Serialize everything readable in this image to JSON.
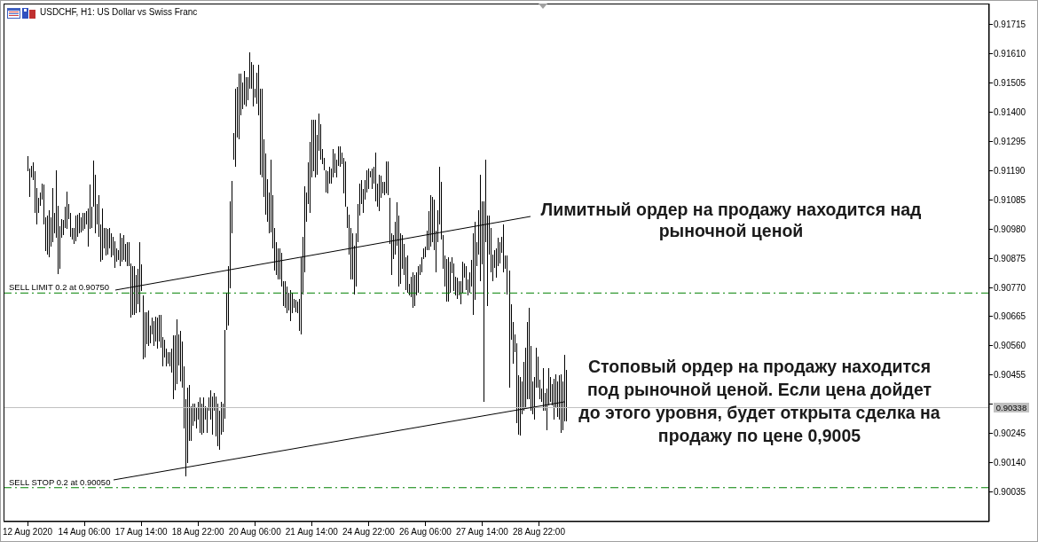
{
  "chart_data": {
    "type": "bar",
    "title": "USDCHF, H1: US Dollar vs Swiss Franc",
    "color": "#000000",
    "categories": [
      "12 Aug 2020",
      null,
      null,
      null,
      null,
      null,
      null,
      null,
      null,
      null,
      null,
      null,
      null,
      null,
      null,
      null,
      null,
      null,
      null,
      null,
      null,
      null,
      null,
      null,
      null,
      null,
      null,
      null,
      null,
      null,
      null,
      null,
      "14 Aug 06:00",
      null,
      null,
      null,
      null,
      null,
      null,
      null,
      null,
      null,
      null,
      null,
      null,
      null,
      null,
      null,
      null,
      null,
      null,
      null,
      null,
      null,
      null,
      null,
      null,
      null,
      null,
      null,
      null,
      null,
      null,
      null,
      "17 Aug 14:00",
      null,
      null,
      null,
      null,
      null,
      null,
      null,
      null,
      null,
      null,
      null,
      null,
      null,
      null,
      null,
      null,
      null,
      null,
      null,
      null,
      null,
      null,
      null,
      null,
      null,
      null,
      null,
      null,
      null,
      null,
      null,
      "18 Aug 22:00",
      null,
      null,
      null,
      null,
      null,
      null,
      null,
      null,
      null,
      null,
      null,
      null,
      null,
      null,
      null,
      null,
      null,
      null,
      null,
      null,
      null,
      null,
      null,
      null,
      null,
      null,
      null,
      null,
      null,
      null,
      null,
      "20 Aug 06:00",
      null,
      null,
      null,
      null,
      null,
      null,
      null,
      null,
      null,
      null,
      null,
      null,
      null,
      null,
      null,
      null,
      null,
      null,
      null,
      null,
      null,
      null,
      null,
      null,
      null,
      null,
      null,
      null,
      null,
      null,
      null,
      "21 Aug 14:00",
      null,
      null,
      null,
      null,
      null,
      null,
      null,
      null,
      null,
      null,
      null,
      null,
      null,
      null,
      null,
      null,
      null,
      null,
      null,
      null,
      null,
      null,
      null,
      null,
      null,
      null,
      null,
      null,
      null,
      null,
      null,
      "24 Aug 22:00",
      null,
      null,
      null,
      null,
      null,
      null,
      null,
      null,
      null,
      null,
      null,
      null,
      null,
      null,
      null,
      null,
      null,
      null,
      null,
      null,
      null,
      null,
      null,
      null,
      null,
      null,
      null,
      null,
      null,
      null,
      null,
      "26 Aug 06:00",
      null,
      null,
      null,
      null,
      null,
      null,
      null,
      null,
      null,
      null,
      null,
      null,
      null,
      null,
      null,
      null,
      null,
      null,
      null,
      null,
      null,
      null,
      null,
      null,
      null,
      null,
      null,
      null,
      null,
      null,
      null,
      "27 Aug 14:00",
      null,
      null,
      null,
      null,
      null,
      null,
      null,
      null,
      null,
      null,
      null,
      null,
      null,
      null,
      null,
      null,
      null,
      null,
      null,
      null,
      null,
      null,
      null,
      null,
      null,
      null,
      null,
      null,
      null,
      null,
      null,
      "28 Aug 22:00",
      null,
      null,
      null,
      null,
      null,
      null,
      null,
      null,
      null,
      null,
      null,
      null,
      null,
      null,
      null,
      null,
      null,
      null,
      null,
      null,
      null,
      null,
      null,
      null,
      null,
      null,
      null,
      null,
      null,
      null,
      null,
      null,
      null,
      null,
      null,
      null,
      null,
      null,
      null,
      null,
      null,
      null,
      null,
      null,
      null,
      null,
      null,
      null,
      null,
      null,
      null,
      null,
      null,
      null,
      null,
      null,
      null,
      null,
      null,
      null,
      null,
      null,
      null,
      null,
      null,
      null,
      null,
      null,
      null,
      null,
      null,
      null,
      null,
      null,
      null,
      null,
      null,
      null,
      null,
      null,
      null,
      null,
      null,
      null,
      null,
      null,
      null,
      null,
      null,
      null,
      null,
      null,
      null,
      null,
      null,
      null,
      null,
      null,
      null,
      null,
      null,
      null,
      null,
      null,
      null,
      null,
      null,
      null,
      null,
      null,
      null,
      null,
      null,
      null,
      null,
      null,
      null,
      null,
      null,
      null,
      null,
      null,
      null,
      null,
      null,
      null,
      null,
      null,
      null,
      null,
      null,
      null,
      null,
      null,
      null,
      null,
      null,
      null,
      null,
      null,
      null,
      null,
      null,
      null,
      null,
      null,
      null,
      null,
      null,
      null,
      null,
      null,
      null,
      null,
      null,
      null,
      null,
      null,
      null,
      null,
      null,
      null,
      null,
      null,
      null,
      null,
      null,
      null,
      null,
      null,
      null,
      null,
      null,
      null,
      null,
      null,
      null,
      null,
      null,
      null,
      null,
      null,
      null,
      null,
      null,
      null,
      null,
      null,
      null,
      null,
      null,
      null,
      null,
      null,
      null,
      null,
      null,
      null,
      null,
      null,
      null,
      null,
      null,
      null,
      null,
      null,
      null,
      null,
      null,
      null,
      null,
      null,
      null,
      null,
      null,
      null,
      null,
      null,
      null,
      null,
      null,
      null,
      null,
      null,
      null,
      null,
      null,
      null,
      null,
      null,
      null,
      null,
      null,
      null,
      null,
      null,
      null,
      null,
      null,
      null,
      null,
      null,
      null,
      null,
      null,
      null,
      null,
      null,
      null,
      null,
      null,
      null,
      null
    ],
    "base": [
      0.91188,
      0.91096,
      0.91166,
      0.91156,
      0.91038,
      0.90997,
      0.91038,
      0.91064,
      0.91086,
      0.90997,
      0.90901,
      0.90889,
      0.90879,
      0.90917,
      0.90933,
      0.90965,
      0.90949,
      0.90818,
      0.90837,
      0.90949,
      0.90959,
      0.90984,
      0.90981,
      0.91016,
      0.90952,
      0.90943,
      0.90927,
      0.90936,
      0.90952,
      0.90965,
      0.90968,
      0.90975,
      0.90981,
      0.90997,
      0.90917,
      0.90981,
      0.90984,
      0.91061,
      0.90965,
      0.90997,
      0.90952,
      0.90863,
      0.90869,
      0.90911,
      0.90885,
      0.90889,
      0.90911,
      0.90879,
      0.90885,
      0.90841,
      0.90863,
      0.90869,
      0.90847,
      0.90863,
      0.90869,
      0.90863,
      0.90847,
      0.90847,
      0.90662,
      0.90672,
      0.90672,
      0.90678,
      0.9071,
      0.90681,
      0.90758,
      0.90512,
      0.90518,
      0.90566,
      0.9056,
      0.9057,
      0.90601,
      0.9056,
      0.90576,
      0.9055,
      0.90576,
      0.90554,
      0.90487,
      0.90518,
      0.90487,
      0.90496,
      0.90487,
      0.90464,
      0.90369,
      0.904,
      0.90423,
      0.9049,
      0.90432,
      0.9041,
      0.90263,
      0.90091,
      0.90139,
      0.90219,
      0.90219,
      0.90273,
      0.90289,
      0.90263,
      0.90295,
      0.90247,
      0.90241,
      0.90247,
      0.90295,
      0.90247,
      0.90327,
      0.90295,
      0.90241,
      0.90327,
      0.90235,
      0.90199,
      0.90187,
      0.90241,
      0.90251,
      0.90298,
      0.90617,
      0.90633,
      0.90767,
      0.90965,
      0.9123,
      0.91204,
      0.9131,
      0.91303,
      0.91389,
      0.91412,
      0.91428,
      0.91421,
      0.91444,
      0.91485,
      0.91485,
      0.91421,
      0.91453,
      0.91431,
      0.91389,
      0.91176,
      0.91166,
      0.91096,
      0.91032,
      0.91007,
      0.90965,
      0.90968,
      0.90911,
      0.90831,
      0.90815,
      0.90799,
      0.90799,
      0.90774,
      0.90703,
      0.90697,
      0.90678,
      0.90688,
      0.90649,
      0.90678,
      0.90697,
      0.90681,
      0.90678,
      0.90614,
      0.90601,
      0.90745,
      0.90825,
      0.91007,
      0.9107,
      0.91038,
      0.91166,
      0.91188,
      0.91166,
      0.91176,
      0.91262,
      0.9123,
      0.91214,
      0.91192,
      0.91112,
      0.91109,
      0.91144,
      0.91144,
      0.91166,
      0.91182,
      0.91166,
      0.91208,
      0.91204,
      0.91214,
      0.91109,
      0.91061,
      0.90984,
      0.90889,
      0.90799,
      0.90799,
      0.90745,
      0.90774,
      0.90933,
      0.91029,
      0.9107,
      0.91038,
      0.91086,
      0.91112,
      0.91125,
      0.91166,
      0.91125,
      0.91144,
      0.9108,
      0.91061,
      0.91045,
      0.91093,
      0.91109,
      0.91102,
      0.91109,
      0.91102,
      0.90927,
      0.90815,
      0.90873,
      0.90889,
      0.9092,
      0.90774,
      0.90783,
      0.90837,
      0.90815,
      0.90761,
      0.90751,
      0.90742,
      0.90735,
      0.90697,
      0.90703,
      0.90742,
      0.90751,
      0.90815,
      0.90825,
      0.90873,
      0.90879,
      0.90904,
      0.90904,
      0.90917,
      0.90933,
      0.90904,
      0.90825,
      0.90933,
      0.90997,
      0.90943,
      0.90837,
      0.90774,
      0.90719,
      0.90719,
      0.90751,
      0.90822,
      0.90758,
      0.90742,
      0.90729,
      0.90742,
      0.9071,
      0.90751,
      0.90806,
      0.90761,
      0.90742,
      0.90751,
      0.90774,
      0.90672,
      0.90726,
      0.90847,
      0.90889,
      0.90793,
      0.90853,
      0.90359,
      0.90933,
      0.90703,
      0.90889,
      0.90825,
      0.90793,
      0.90841,
      0.90806,
      0.90847,
      0.90857,
      0.90895,
      0.90825,
      0.90837,
      0.90745,
      0.9041,
      0.90582,
      0.90496,
      0.90538,
      0.90282,
      0.90241,
      0.90238,
      0.90314,
      0.90327,
      0.90337,
      0.90369,
      0.90369,
      0.90327,
      0.90314,
      0.90295,
      0.9041,
      0.9041,
      0.90369,
      0.90359,
      0.90327,
      0.90327,
      0.90257,
      0.90346,
      0.90359,
      0.90346,
      0.90295,
      0.90337,
      0.90305,
      0.90295,
      0.90247,
      0.90257,
      0.90289,
      0.90289,
      null,
      null,
      null,
      null,
      null,
      null,
      null,
      null,
      null,
      null,
      null,
      null,
      null,
      null,
      null,
      null,
      null,
      null,
      null,
      null,
      null,
      null,
      null,
      null,
      null,
      null,
      null,
      null,
      null,
      null,
      null,
      null,
      null,
      null,
      null,
      null,
      null,
      null,
      null,
      null,
      null,
      null,
      null,
      null,
      null,
      null,
      null,
      null,
      null,
      null,
      null,
      null,
      null,
      null,
      null,
      null,
      null,
      null,
      null,
      null,
      null,
      null,
      null,
      null,
      null,
      null,
      null,
      null,
      null,
      null,
      null,
      null,
      null,
      null,
      null,
      null,
      null,
      null,
      null,
      null,
      null,
      null,
      null,
      null,
      null,
      null,
      null,
      null,
      null,
      null,
      null,
      null,
      null,
      null,
      null,
      null,
      null,
      null,
      null,
      null,
      null,
      null,
      null,
      null,
      null,
      null,
      null,
      null,
      null,
      null,
      null,
      null,
      null,
      null,
      null,
      null,
      null,
      null,
      null,
      null,
      null,
      null,
      null,
      null,
      null,
      null,
      null,
      null,
      null,
      null,
      null,
      null,
      null,
      null,
      null,
      null,
      null,
      null,
      null,
      null,
      null,
      null,
      null,
      null,
      null,
      null,
      null,
      null,
      null,
      null,
      null,
      null,
      null,
      null,
      null,
      null,
      null,
      null,
      null,
      null,
      null,
      null,
      null,
      null,
      null,
      null,
      null,
      null,
      null,
      null,
      null,
      null,
      null,
      null,
      null,
      null,
      null,
      null,
      null,
      null,
      null,
      null,
      null,
      null,
      null,
      null,
      null,
      null,
      null,
      null,
      null,
      null,
      null,
      null,
      null,
      null,
      null,
      null,
      null,
      null,
      null,
      null,
      null,
      null,
      null,
      null,
      null,
      null,
      null,
      null,
      null,
      null,
      null,
      null,
      null,
      null,
      null,
      null,
      null,
      null,
      null,
      null,
      null,
      null,
      null,
      null,
      null,
      null,
      null,
      null,
      null,
      null,
      null,
      null,
      null,
      null,
      null,
      null
    ],
    "values": [
      0.00054,
      0.00102,
      0.00041,
      0.00064,
      0.0015,
      0.00131,
      0.00054,
      0.00048,
      0.00057,
      0.00144,
      0.00121,
      0.0014,
      0.00169,
      0.00105,
      0.00195,
      0.00073,
      0.00242,
      0.00246,
      0.00153,
      0.00067,
      0.00054,
      0.00077,
      0.00134,
      0.00054,
      0.00086,
      0.00041,
      0.00057,
      0.00093,
      0.0008,
      0.00073,
      0.00054,
      0.00064,
      0.00057,
      0.00048,
      0.00137,
      0.0016,
      0.00077,
      0.00166,
      0.00211,
      0.00073,
      0.0015,
      0.00134,
      0.00185,
      0.00073,
      0.00099,
      0.00093,
      0.00073,
      0.00086,
      0.00067,
      0.00096,
      0.00048,
      0.00035,
      0.00118,
      0.00086,
      0.00089,
      0.00064,
      0.00086,
      0.00086,
      0.00195,
      0.00176,
      0.00176,
      0.00137,
      0.00128,
      0.00252,
      0.00096,
      0.0023,
      0.00163,
      0.00115,
      0.00128,
      0.00064,
      0.00061,
      0.00089,
      0.00089,
      0.00112,
      0.00096,
      0.00118,
      0.00105,
      0.00064,
      0.00064,
      0.00041,
      0.00051,
      0.00086,
      0.0023,
      0.00198,
      0.00233,
      0.00112,
      0.00182,
      0.00166,
      0.00223,
      0.00278,
      0.00271,
      0.00201,
      0.00124,
      0.0008,
      0.00064,
      0.00073,
      0.00064,
      0.00128,
      0.00112,
      0.00128,
      0.00048,
      0.00089,
      0.00048,
      0.00105,
      0.00137,
      0.00064,
      0.00144,
      0.00153,
      0.0014,
      0.00118,
      0.00102,
      0.00319,
      0.00134,
      0.00214,
      0.00313,
      0.00188,
      0.00096,
      0.00281,
      0.00182,
      0.00236,
      0.0015,
      0.00096,
      0.00121,
      0.00105,
      0.00083,
      0.00131,
      0.00096,
      0.0015,
      0.00032,
      0.00112,
      0.00182,
      0.00309,
      0.00319,
      0.00207,
      0.0022,
      0.00153,
      0.00147,
      0.00262,
      0.00191,
      0.00153,
      0.00118,
      0.00112,
      0.00112,
      0.00121,
      0.00089,
      0.00096,
      0.00096,
      0.00064,
      0.00112,
      0.00073,
      0.00032,
      0.00045,
      0.00041,
      0.00115,
      0.00278,
      0.00207,
      0.00309,
      0.00105,
      0.0015,
      0.00255,
      0.00207,
      0.00185,
      0.00207,
      0.00144,
      0.00134,
      0.00128,
      0.00054,
      0.00045,
      0.0008,
      0.0008,
      0.00061,
      0.00054,
      0.00102,
      0.0007,
      0.00064,
      0.0007,
      0.00073,
      0.00041,
      0.00128,
      0.00163,
      0.00077,
      0.00144,
      0.00185,
      0.00166,
      0.00176,
      0.00191,
      0.00137,
      0.00115,
      0.00086,
      0.00086,
      0.0007,
      0.0008,
      0.00073,
      0.00022,
      0.00073,
      0.00061,
      0.00176,
      0.00083,
      0.00131,
      0.0008,
      0.00041,
      0.00048,
      0.00115,
      0.00121,
      0.00166,
      0.0015,
      0.00086,
      0.00118,
      0.00156,
      0.00255,
      0.00182,
      0.00121,
      0.00112,
      0.00118,
      0.00134,
      0.00041,
      0.00073,
      0.00128,
      0.00112,
      0.00083,
      0.00096,
      0.00038,
      0.00054,
      0.00038,
      0.00038,
      0.0007,
      0.0014,
      0.00185,
      0.00163,
      0.00182,
      0.0015,
      0.00115,
      0.00207,
      0.00207,
      0.00121,
      0.00112,
      0.00153,
      0.0016,
      0.00112,
      0.00057,
      0.00099,
      0.00067,
      0.00077,
      0.00051,
      0.00083,
      0.00112,
      0.00051,
      0.00086,
      0.00057,
      0.00073,
      0.00096,
      0.00293,
      0.00281,
      0.00086,
      0.0016,
      0.00383,
      0.00227,
      0.00721,
      0.00297,
      0.00325,
      0.0014,
      0.0016,
      0.00096,
      0.00064,
      0.00105,
      0.00102,
      0.00077,
      0.00057,
      0.00172,
      0.00048,
      0.0014,
      0.00421,
      0.00128,
      0.0015,
      0.00064,
      0.00287,
      0.00214,
      0.00211,
      0.00118,
      0.00176,
      0.00217,
      0.00278,
      0.00329,
      0.00233,
      0.00118,
      0.00153,
      0.00144,
      0.00112,
      0.0007,
      0.00048,
      0.00153,
      0.00064,
      0.0015,
      0.00134,
      0.00089,
      0.00077,
      0.00147,
      0.00121,
      0.00128,
      0.0016,
      0.00211,
      0.00176,
      0.00239,
      0.00185,
      null,
      null,
      null,
      null,
      null,
      null,
      null,
      null,
      null,
      null,
      null,
      null,
      null,
      null,
      null,
      null,
      null,
      null,
      null,
      null,
      null,
      null,
      null,
      null,
      null,
      null,
      null,
      null,
      null,
      null,
      null,
      null,
      null,
      null,
      null,
      null,
      null,
      null,
      null,
      null,
      null,
      null,
      null,
      null,
      null,
      null,
      null,
      null,
      null,
      null,
      null,
      null,
      null,
      null,
      null,
      null,
      null,
      null,
      null,
      null,
      null,
      null,
      null,
      null,
      null,
      null,
      null,
      null,
      null,
      null,
      null,
      null,
      null,
      null,
      null,
      null,
      null,
      null,
      null,
      null,
      null,
      null,
      null,
      null,
      null,
      null,
      null,
      null,
      null,
      null,
      null,
      null,
      null,
      null,
      null,
      null,
      null,
      null,
      null,
      null,
      null,
      null,
      null,
      null,
      null,
      null,
      null,
      null,
      null,
      null,
      null,
      null,
      null,
      null,
      null,
      null,
      null,
      null,
      null,
      null,
      null,
      null,
      null,
      null,
      null,
      null,
      null,
      null,
      null,
      null,
      null,
      null,
      null,
      null,
      null,
      null,
      null,
      null,
      null,
      null,
      null,
      null,
      null,
      null,
      null,
      null,
      null,
      null,
      null,
      null,
      null,
      null,
      null,
      null,
      null,
      null,
      null,
      null,
      null,
      null,
      null,
      null,
      null,
      null,
      null,
      null,
      null,
      null,
      null,
      null,
      null,
      null,
      null,
      null,
      null,
      null,
      null,
      null,
      null,
      null,
      null,
      null,
      null,
      null,
      null,
      null,
      null,
      null,
      null,
      null,
      null,
      null,
      null,
      null,
      null,
      null,
      null,
      null,
      null,
      null,
      null,
      null,
      null,
      null,
      null,
      null,
      null,
      null,
      null,
      null,
      null,
      null,
      null,
      null,
      null,
      null,
      null,
      null,
      null,
      null,
      null,
      null,
      null,
      null,
      null,
      null,
      null,
      null,
      null,
      null,
      null,
      null,
      null,
      null,
      null,
      null,
      null,
      null
    ],
    "ylim": [
      0.89928,
      0.91791
    ],
    "yticks": [
      0.90035,
      {
        "value": 0.9014,
        "label": "0.90140"
      },
      0.90245,
      {
        "value": 0.9035,
        "label": null
      },
      0.90455,
      {
        "value": 0.9056,
        "label": "0.90560"
      },
      0.90665,
      {
        "value": 0.9077,
        "label": "0.90770"
      },
      0.90875,
      {
        "value": 0.9098,
        "label": "0.90980"
      },
      0.91085,
      {
        "value": 0.9119,
        "label": "0.91190"
      },
      0.91295,
      {
        "value": 0.914,
        "label": "0.91400"
      },
      0.91505,
      {
        "value": 0.9161,
        "label": "0.91610"
      },
      0.91715
    ],
    "ref_lines": [
      {
        "axis": "y",
        "value": 0.9075,
        "label": "SELL LIMIT 0.2 at 0.90750",
        "color": "#008000",
        "line_style": "dashed"
      },
      {
        "axis": "y",
        "value": 0.9005,
        "label": "SELL STOP 0.2 at 0.90050",
        "color": "#008000",
        "line_style": "dashed"
      },
      {
        "axis": "y",
        "value": 0.90338,
        "label": "0.90338",
        "color": "#c0c0c0",
        "line_style": "solid"
      }
    ],
    "annotations": [
      "Лимитный ордер на продажу находится над\nрыночной ценой",
      "Стоповый ордер на продажу находится\nпод рыночной ценой. Если цена дойдет\nдо этого уровня, будет открыта сделка на\nпродажу по цене 0,9005"
    ]
  }
}
